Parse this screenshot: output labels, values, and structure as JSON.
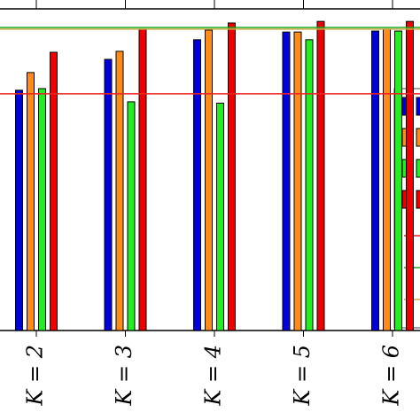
{
  "chart_data": {
    "type": "bar",
    "categories": [
      "K = 2",
      "K = 3",
      "K = 4",
      "K = 5",
      "K = 6"
    ],
    "series": [
      {
        "color": "#0000dd",
        "values": [
          74.7,
          84.3,
          90.4,
          92.8,
          93.1
        ]
      },
      {
        "color": "#ff8c1a",
        "values": [
          80.2,
          86.8,
          93.4,
          92.8,
          93.7
        ]
      },
      {
        "color": "#22ee22",
        "values": [
          75.2,
          71.1,
          70.7,
          90.4,
          93.1
        ]
      },
      {
        "color": "#ee0000",
        "values": [
          86.5,
          93.7,
          95.6,
          96.1,
          96.1
        ]
      }
    ],
    "hlines": [
      {
        "value": 73.6,
        "color": "#ee2222"
      },
      {
        "value": 94.2,
        "color": "#22aa22"
      },
      {
        "value": 93.7,
        "color": "#ccaa44"
      }
    ],
    "ylim": [
      0,
      100
    ]
  }
}
